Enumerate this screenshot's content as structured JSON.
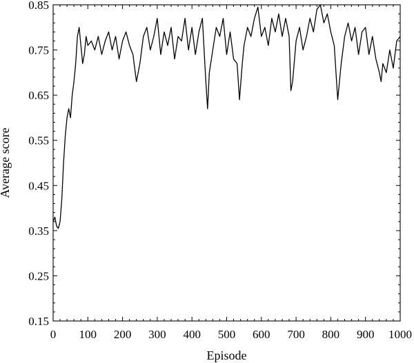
{
  "chart_data": {
    "type": "line",
    "title": "",
    "xlabel": "Episode",
    "ylabel": "Average score",
    "xlim": [
      0,
      1000
    ],
    "ylim": [
      0.15,
      0.85
    ],
    "xticks": [
      "0",
      "100",
      "200",
      "300",
      "400",
      "500",
      "600",
      "700",
      "800",
      "900",
      "1000"
    ],
    "yticks": [
      "0.15",
      "0.25",
      "0.35",
      "0.45",
      "0.55",
      "0.65",
      "0.75",
      "0.85"
    ],
    "grid": false,
    "legend": "none",
    "series": [
      {
        "color": "#000000",
        "x": [
          0,
          5,
          10,
          15,
          20,
          25,
          30,
          35,
          40,
          45,
          50,
          55,
          60,
          65,
          70,
          75,
          80,
          85,
          90,
          95,
          100,
          110,
          120,
          130,
          140,
          150,
          160,
          170,
          180,
          190,
          200,
          210,
          220,
          230,
          240,
          245,
          250,
          260,
          270,
          280,
          290,
          300,
          310,
          320,
          330,
          340,
          350,
          360,
          370,
          380,
          390,
          400,
          410,
          420,
          430,
          440,
          445,
          450,
          460,
          470,
          480,
          490,
          500,
          510,
          520,
          530,
          537,
          545,
          550,
          560,
          570,
          580,
          590,
          600,
          610,
          620,
          630,
          640,
          650,
          660,
          670,
          680,
          685,
          690,
          700,
          710,
          720,
          730,
          740,
          750,
          760,
          770,
          780,
          790,
          800,
          810,
          820,
          830,
          840,
          850,
          860,
          870,
          880,
          890,
          900,
          910,
          920,
          930,
          940,
          945,
          950,
          960,
          970,
          980,
          990,
          1000
        ],
        "y": [
          0.37,
          0.38,
          0.36,
          0.355,
          0.37,
          0.42,
          0.5,
          0.56,
          0.6,
          0.62,
          0.6,
          0.65,
          0.68,
          0.72,
          0.78,
          0.8,
          0.76,
          0.72,
          0.74,
          0.78,
          0.76,
          0.77,
          0.75,
          0.78,
          0.74,
          0.77,
          0.79,
          0.75,
          0.78,
          0.73,
          0.77,
          0.79,
          0.76,
          0.74,
          0.68,
          0.7,
          0.72,
          0.78,
          0.8,
          0.75,
          0.78,
          0.82,
          0.74,
          0.79,
          0.76,
          0.8,
          0.73,
          0.78,
          0.77,
          0.82,
          0.75,
          0.8,
          0.74,
          0.79,
          0.82,
          0.68,
          0.62,
          0.7,
          0.75,
          0.8,
          0.78,
          0.82,
          0.74,
          0.79,
          0.73,
          0.72,
          0.64,
          0.72,
          0.76,
          0.8,
          0.78,
          0.82,
          0.845,
          0.78,
          0.8,
          0.76,
          0.82,
          0.79,
          0.83,
          0.78,
          0.82,
          0.78,
          0.66,
          0.68,
          0.77,
          0.8,
          0.75,
          0.78,
          0.82,
          0.79,
          0.84,
          0.85,
          0.81,
          0.83,
          0.79,
          0.76,
          0.64,
          0.72,
          0.78,
          0.81,
          0.77,
          0.8,
          0.74,
          0.79,
          0.8,
          0.74,
          0.78,
          0.73,
          0.7,
          0.68,
          0.72,
          0.7,
          0.75,
          0.71,
          0.77,
          0.78
        ]
      }
    ]
  }
}
